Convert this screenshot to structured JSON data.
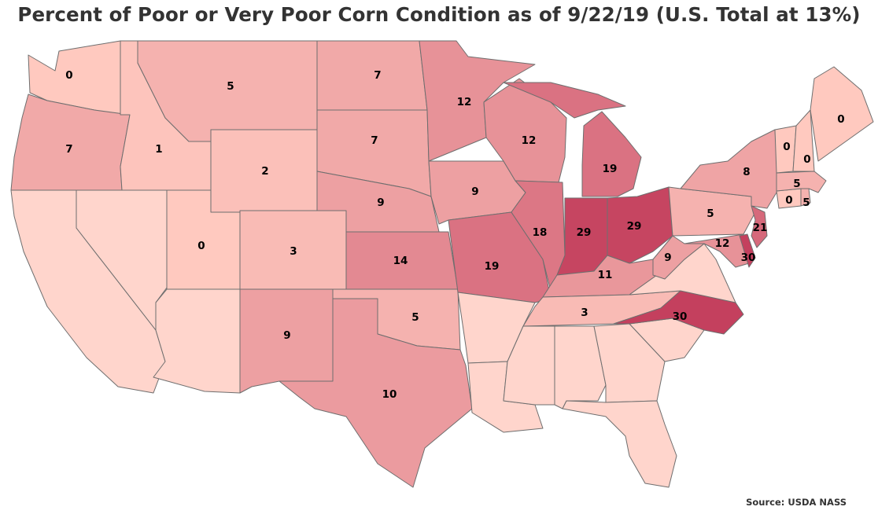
{
  "title": "Percent of Poor or Very Poor Corn Condition as of 9/22/19 (U.S. Total at 13%)",
  "source": "Source: USDA NASS",
  "colors": {
    "no_data": "#ffd5cc",
    "low": "#ffc9bf",
    "high": "#c4405e",
    "stroke": "#6e6e6e"
  },
  "color_scale_max": 30,
  "state_values": {
    "WA": 0,
    "OR": 7,
    "ID": 1,
    "MT": 5,
    "WY": 2,
    "UT": 0,
    "CO": 3,
    "NM": 9,
    "ND": 7,
    "SD": 7,
    "NE": 9,
    "KS": 14,
    "OK": 5,
    "TX": 10,
    "MN": 12,
    "IA": 9,
    "MO": 19,
    "WI": 12,
    "IL": 18,
    "MI": 19,
    "IN": 29,
    "OH": 29,
    "KY": 11,
    "TN": 3,
    "NC": 30,
    "WV": 9,
    "PA": 5,
    "MD": 12,
    "DE": 30,
    "NJ": 21,
    "NY": 8,
    "VT": 0,
    "NH": 0,
    "ME": 0,
    "MA": 5,
    "CT": 0,
    "RI": 5
  }
}
